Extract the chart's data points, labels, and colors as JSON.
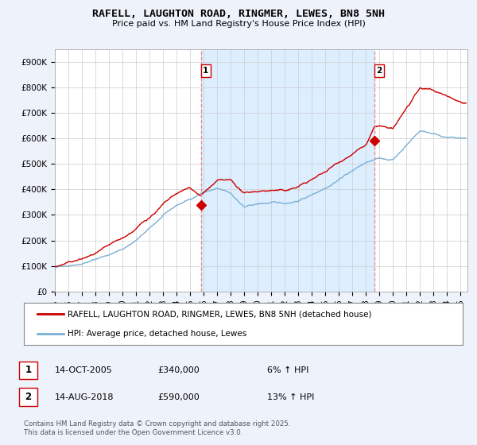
{
  "title": "RAFELL, LAUGHTON ROAD, RINGMER, LEWES, BN8 5NH",
  "subtitle": "Price paid vs. HM Land Registry's House Price Index (HPI)",
  "ylim": [
    0,
    950000
  ],
  "xlim_start": 1995.0,
  "xlim_end": 2025.5,
  "yticks": [
    0,
    100000,
    200000,
    300000,
    400000,
    500000,
    600000,
    700000,
    800000,
    900000
  ],
  "ytick_labels": [
    "£0",
    "£100K",
    "£200K",
    "£300K",
    "£400K",
    "£500K",
    "£600K",
    "£700K",
    "£800K",
    "£900K"
  ],
  "xtick_years": [
    1995,
    1996,
    1997,
    1998,
    1999,
    2000,
    2001,
    2002,
    2003,
    2004,
    2005,
    2006,
    2007,
    2008,
    2009,
    2010,
    2011,
    2012,
    2013,
    2014,
    2015,
    2016,
    2017,
    2018,
    2019,
    2020,
    2021,
    2022,
    2023,
    2024,
    2025
  ],
  "sale1_x": 2005.79,
  "sale1_y": 340000,
  "sale1_label": "1",
  "sale2_x": 2018.62,
  "sale2_y": 590000,
  "sale2_label": "2",
  "vline1_x": 2005.79,
  "vline2_x": 2018.62,
  "hpi_color": "#7bafd4",
  "price_color": "#cc0000",
  "vline_color": "#ee8888",
  "shade_color": "#ddeeff",
  "background_color": "#eef2fa",
  "plot_bg_color": "#ffffff",
  "legend_house": "RAFELL, LAUGHTON ROAD, RINGMER, LEWES, BN8 5NH (detached house)",
  "legend_hpi": "HPI: Average price, detached house, Lewes",
  "footer": "Contains HM Land Registry data © Crown copyright and database right 2025.\nThis data is licensed under the Open Government Licence v3.0.",
  "annotation1_date": "14-OCT-2005",
  "annotation1_price": "£340,000",
  "annotation1_hpi": "6% ↑ HPI",
  "annotation2_date": "14-AUG-2018",
  "annotation2_price": "£590,000",
  "annotation2_hpi": "13% ↑ HPI",
  "hpi_base_x": [
    1995,
    1996,
    1997,
    1998,
    1999,
    2000,
    2001,
    2002,
    2003,
    2004,
    2005,
    2006,
    2007,
    2008,
    2009,
    2010,
    2011,
    2012,
    2013,
    2014,
    2015,
    2016,
    2017,
    2018,
    2019,
    2020,
    2021,
    2022,
    2023,
    2024,
    2025
  ],
  "hpi_base_y": [
    92000,
    103000,
    115000,
    132000,
    152000,
    172000,
    208000,
    252000,
    300000,
    338000,
    362000,
    392000,
    402000,
    382000,
    328000,
    338000,
    342000,
    338000,
    352000,
    375000,
    405000,
    445000,
    480000,
    510000,
    522000,
    518000,
    578000,
    635000,
    625000,
    612000,
    605000
  ],
  "price_base_x": [
    1995,
    1996,
    1997,
    1998,
    1999,
    2000,
    2001,
    2002,
    2003,
    2004,
    2005,
    2005.79,
    2006,
    2007,
    2008,
    2009,
    2010,
    2011,
    2012,
    2013,
    2014,
    2015,
    2016,
    2017,
    2018,
    2018.62,
    2019,
    2020,
    2021,
    2022,
    2023,
    2024,
    2025
  ],
  "price_base_y": [
    97000,
    110000,
    123000,
    140000,
    161000,
    183000,
    220000,
    265000,
    315000,
    350000,
    370000,
    340000,
    350000,
    395000,
    388000,
    335000,
    345000,
    350000,
    345000,
    362000,
    388000,
    418000,
    458000,
    495000,
    525000,
    590000,
    595000,
    575000,
    655000,
    725000,
    715000,
    695000,
    675000
  ]
}
